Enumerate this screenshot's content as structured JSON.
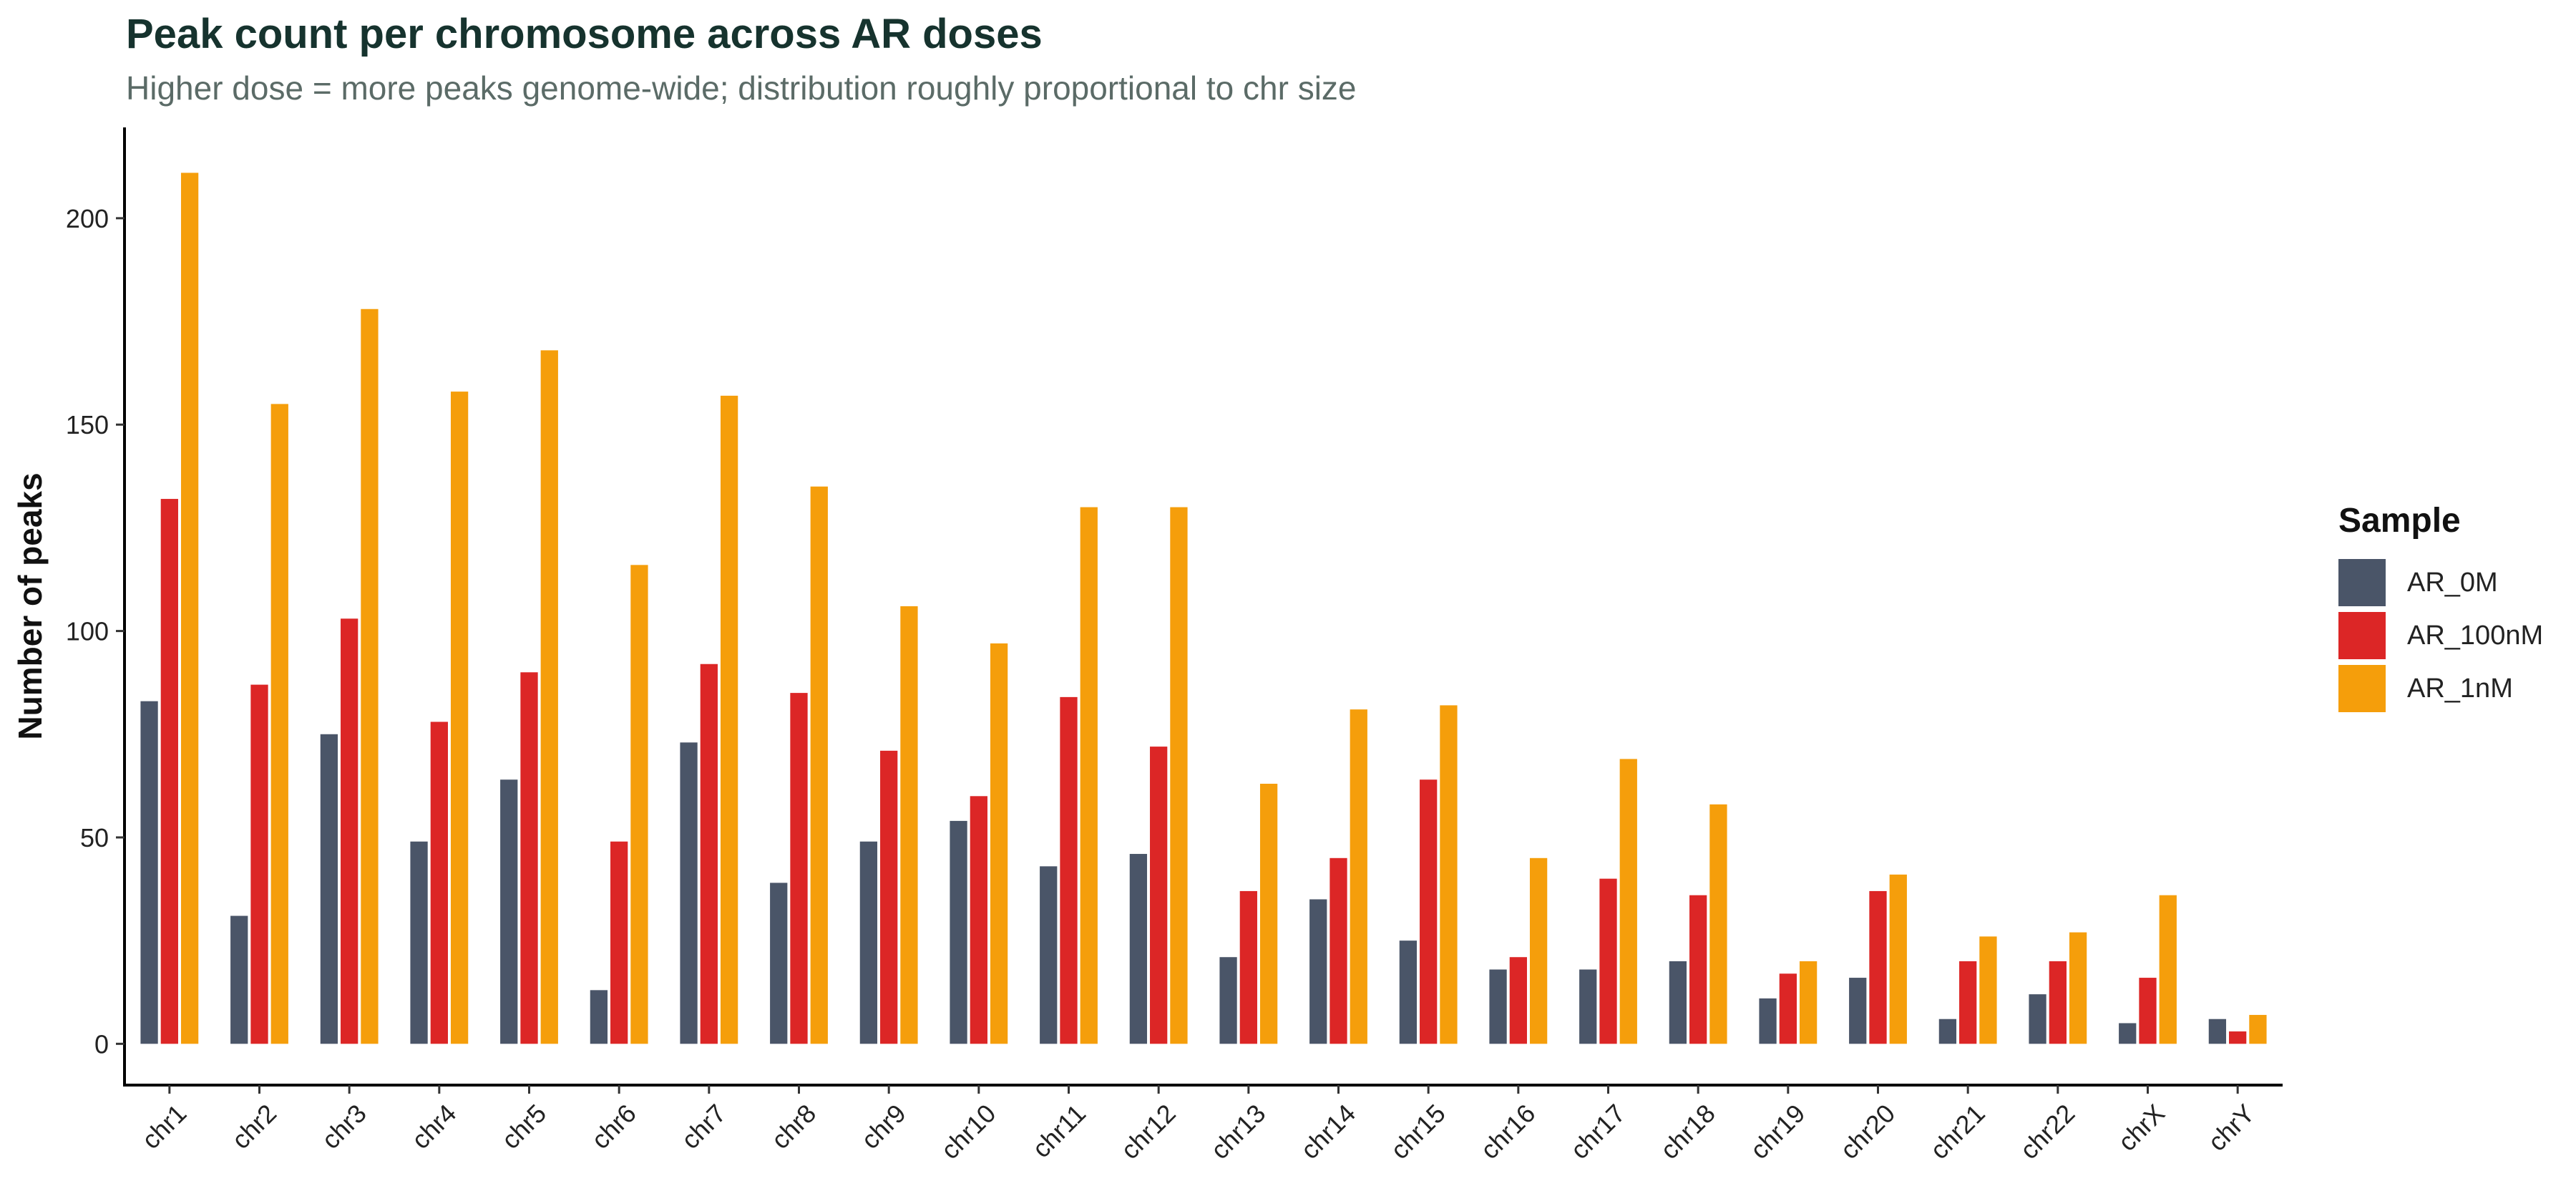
{
  "title": "Peak count per chromosome across AR doses",
  "subtitle": "Higher dose = more peaks genome-wide; distribution roughly proportional to chr size",
  "chart_data": {
    "type": "bar",
    "title": "Peak count per chromosome across AR doses",
    "subtitle": "Higher dose = more peaks genome-wide; distribution roughly proportional to chr size",
    "xlabel": "",
    "ylabel": "Number of peaks",
    "ylim": [
      -10,
      222
    ],
    "yticks": [
      0,
      50,
      100,
      150,
      200
    ],
    "grid": false,
    "legend_title": "Sample",
    "legend_position": "right",
    "categories": [
      "chr1",
      "chr2",
      "chr3",
      "chr4",
      "chr5",
      "chr6",
      "chr7",
      "chr8",
      "chr9",
      "chr10",
      "chr11",
      "chr12",
      "chr13",
      "chr14",
      "chr15",
      "chr16",
      "chr17",
      "chr18",
      "chr19",
      "chr20",
      "chr21",
      "chr22",
      "chrX",
      "chrY"
    ],
    "series": [
      {
        "name": "AR_0M",
        "color": "#4a5568",
        "values": [
          83,
          31,
          75,
          49,
          64,
          13,
          73,
          39,
          49,
          54,
          43,
          46,
          21,
          35,
          25,
          18,
          18,
          20,
          11,
          16,
          6,
          12,
          5,
          6
        ]
      },
      {
        "name": "AR_100nM",
        "color": "#dc2626",
        "values": [
          132,
          87,
          103,
          78,
          90,
          49,
          92,
          85,
          71,
          60,
          84,
          72,
          37,
          45,
          64,
          21,
          40,
          36,
          17,
          37,
          20,
          20,
          16,
          3
        ]
      },
      {
        "name": "AR_1nM",
        "color": "#f59e0b",
        "values": [
          211,
          155,
          178,
          158,
          168,
          116,
          157,
          135,
          106,
          97,
          130,
          130,
          63,
          81,
          82,
          45,
          69,
          58,
          20,
          41,
          26,
          27,
          36,
          7
        ]
      }
    ]
  }
}
